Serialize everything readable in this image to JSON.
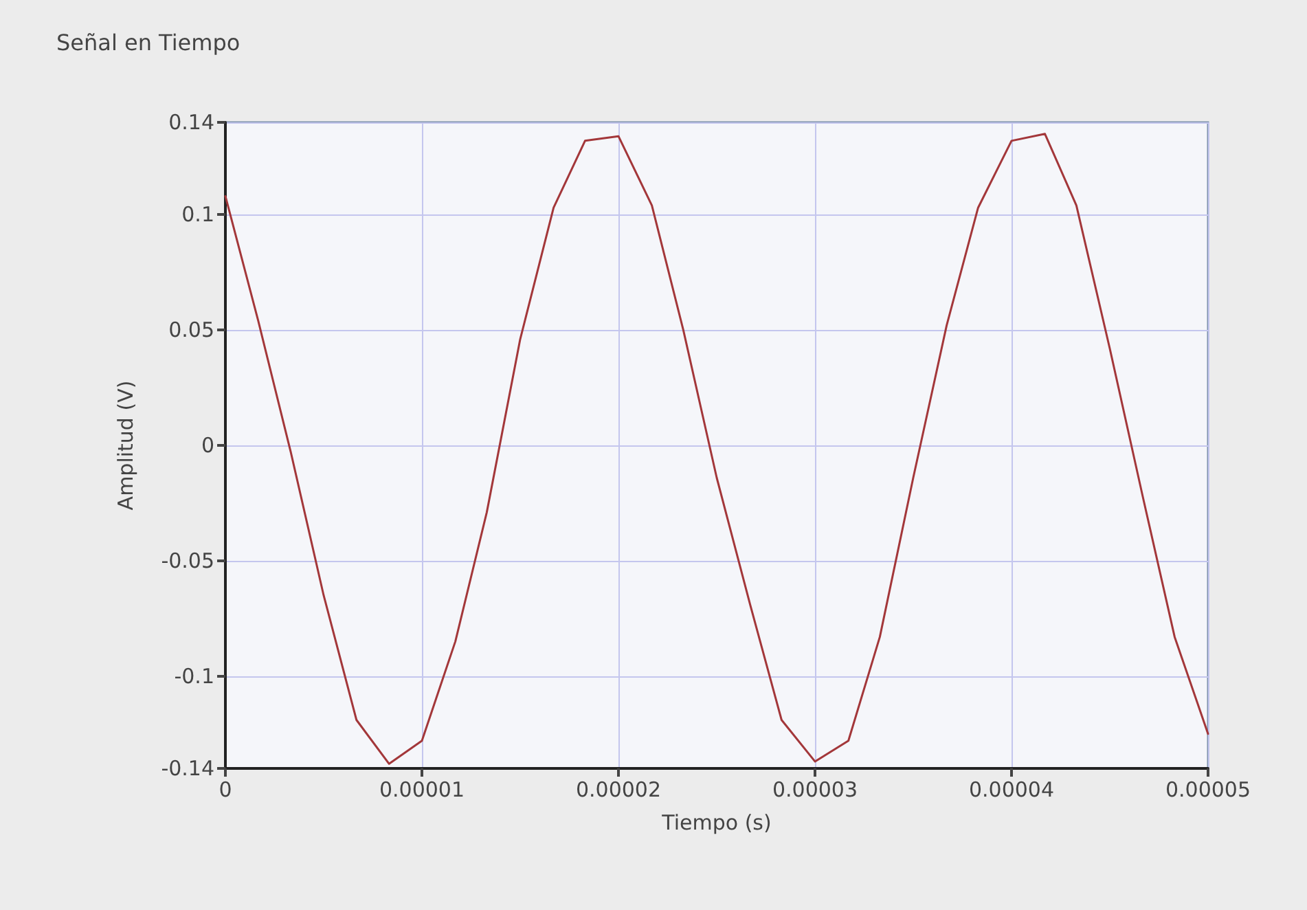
{
  "chart_data": {
    "type": "line",
    "title": "Señal en Tiempo",
    "xlabel": "Tiempo (s)",
    "ylabel": "Amplitud (V)",
    "x": [
      0,
      1.67e-06,
      3.33e-06,
      5e-06,
      6.67e-06,
      8.33e-06,
      1e-05,
      1.17e-05,
      1.33e-05,
      1.5e-05,
      1.67e-05,
      1.83e-05,
      2e-05,
      2.17e-05,
      2.33e-05,
      2.5e-05,
      2.67e-05,
      2.83e-05,
      3e-05,
      3.17e-05,
      3.33e-05,
      3.5e-05,
      3.67e-05,
      3.83e-05,
      4e-05,
      4.17e-05,
      4.33e-05,
      4.5e-05,
      4.67e-05,
      4.83e-05,
      5e-05
    ],
    "series": [
      {
        "color": "#a3373a",
        "values": [
          0.108,
          0.054,
          -0.003,
          -0.065,
          -0.119,
          -0.138,
          -0.128,
          -0.085,
          -0.029,
          0.046,
          0.103,
          0.132,
          0.134,
          0.104,
          0.05,
          -0.014,
          -0.069,
          -0.119,
          -0.137,
          -0.128,
          -0.083,
          -0.014,
          0.052,
          0.103,
          0.132,
          0.135,
          0.104,
          0.042,
          -0.023,
          -0.083,
          -0.125
        ]
      }
    ],
    "xlim": [
      0,
      5e-05
    ],
    "xticks": [
      {
        "value": 0,
        "label": "0"
      },
      {
        "value": 1e-05,
        "label": "0.00001"
      },
      {
        "value": 2e-05,
        "label": "0.00002"
      },
      {
        "value": 3e-05,
        "label": "0.00003"
      },
      {
        "value": 4e-05,
        "label": "0.00004"
      },
      {
        "value": 5e-05,
        "label": "0.00005"
      }
    ],
    "ylim": [
      -0.14,
      0.14
    ],
    "yticks": [
      -0.14,
      -0.1,
      -0.05,
      0,
      0.05,
      0.1,
      0.14
    ],
    "grid": true,
    "marker": "none",
    "line_style": "solid"
  }
}
